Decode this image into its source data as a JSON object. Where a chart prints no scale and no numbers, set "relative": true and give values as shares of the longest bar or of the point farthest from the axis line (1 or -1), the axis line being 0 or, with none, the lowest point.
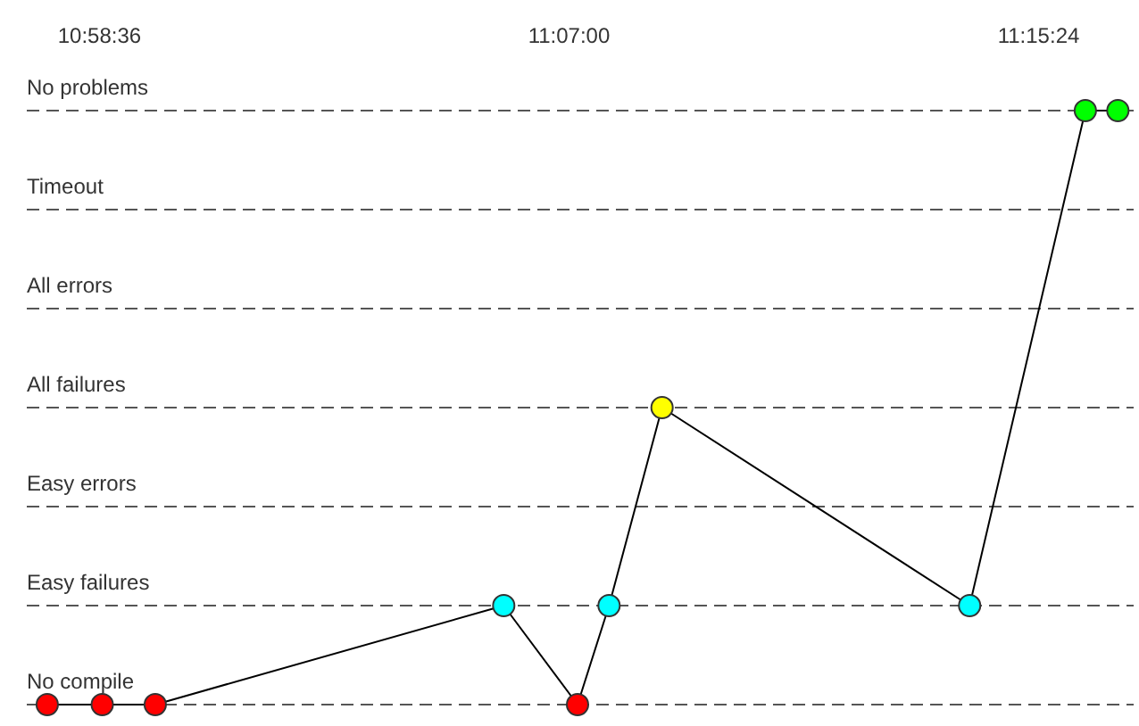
{
  "chart_data": {
    "type": "line",
    "relative": true,
    "x": [
      10.9611,
      10.9775,
      10.9933,
      11.0972,
      11.1192,
      11.1286,
      11.1444,
      11.2361,
      11.2706,
      11.2803
    ],
    "series": [
      {
        "color": "#000000",
        "values": [
          0,
          0,
          0,
          0.1667,
          0,
          0.1667,
          0.5,
          0.1667,
          1,
          1
        ],
        "colors": [
          "#ff0000",
          "#ff0000",
          "#ff0000",
          "#00ffff",
          "#ff0000",
          "#00ffff",
          "#ffff00",
          "#00ffff",
          "#00ff00",
          "#00ff00"
        ]
      }
    ],
    "xlim": [
      10.955,
      11.285
    ],
    "xticks": [
      {
        "value": 10.976667,
        "label": "10:58:36"
      },
      {
        "value": 11.116667,
        "label": "11:07:00"
      },
      {
        "value": 11.256667,
        "label": "11:15:24"
      }
    ],
    "ref_lines": [
      {
        "axis": "y",
        "value": 0,
        "label": "No compile",
        "color": "#555555",
        "line_style": "dashed"
      },
      {
        "axis": "y",
        "value": 0.1667,
        "label": "Easy failures",
        "color": "#555555",
        "line_style": "dashed"
      },
      {
        "axis": "y",
        "value": 0.3333,
        "label": "Easy errors",
        "color": "#555555",
        "line_style": "dashed"
      },
      {
        "axis": "y",
        "value": 0.5,
        "label": "All failures",
        "color": "#555555",
        "line_style": "dashed"
      },
      {
        "axis": "y",
        "value": 0.6667,
        "label": "All errors",
        "color": "#555555",
        "line_style": "dashed"
      },
      {
        "axis": "y",
        "value": 0.8333,
        "label": "Timeout",
        "color": "#555555",
        "line_style": "dashed"
      },
      {
        "axis": "y",
        "value": 1,
        "label": "No problems",
        "color": "#555555",
        "line_style": "dashed"
      }
    ],
    "marker": "circle",
    "line_style": "solid"
  }
}
